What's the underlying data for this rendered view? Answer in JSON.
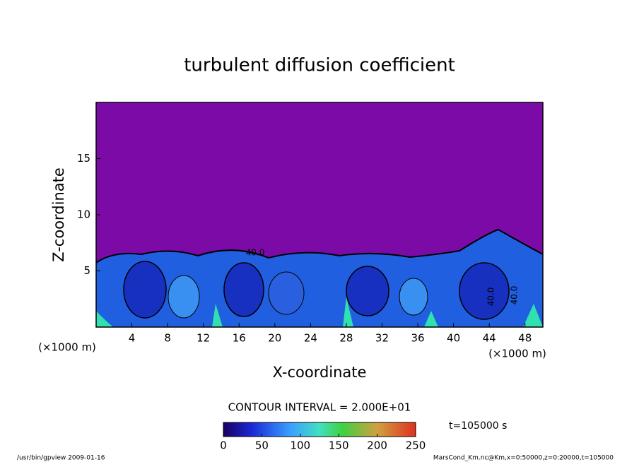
{
  "chart_data": {
    "type": "contour",
    "title": "turbulent diffusion coefficient",
    "xlabel": "X-coordinate",
    "ylabel": "Z-coordinate",
    "x_unit": "(×1000 m)",
    "y_unit": "(×1000 m)",
    "xlim": [
      0,
      50
    ],
    "xticks": [
      4,
      8,
      12,
      16,
      20,
      24,
      28,
      32,
      36,
      40,
      44,
      48
    ],
    "ylim": [
      0,
      20
    ],
    "yticks": [
      5,
      10,
      15
    ],
    "background_color": "#7c0aa6",
    "contour_interval": "CONTOUR INTERVAL = 2.000E+01",
    "contour_labels": [
      "40.0",
      "40.0",
      "40.0"
    ],
    "colorbar": {
      "lim": [
        0,
        250
      ],
      "ticks": [
        0,
        50,
        100,
        150,
        200,
        250
      ]
    },
    "time_label": "t=105000 s",
    "footer_left": "/usr/bin/gpview  2009-01-16",
    "footer_right": "MarsCond_Km.nc@Km,x=0:50000,z=0:20000,t=105000"
  }
}
